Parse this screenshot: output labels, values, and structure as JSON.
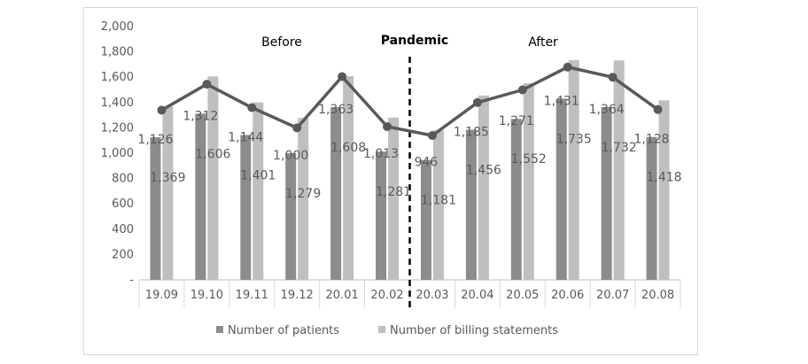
{
  "chart_data": {
    "type": "bar",
    "categories": [
      "19.09",
      "19.10",
      "19.11",
      "19.12",
      "20.01",
      "20.02",
      "20.03",
      "20.04",
      "20.05",
      "20.06",
      "20.07",
      "20.08"
    ],
    "series": [
      {
        "name": "Number of patients",
        "type": "bar",
        "color": "#8c8c8c",
        "values": [
          1126,
          1312,
          1144,
          1000,
          1363,
          1013,
          946,
          1185,
          1271,
          1431,
          1364,
          1128
        ],
        "labels": [
          "1,126",
          "1,312",
          "1,144",
          "1,000",
          "1,363",
          "1,013",
          "946",
          "1,185",
          "1,271",
          "1,431",
          "1,364",
          "1,128"
        ]
      },
      {
        "name": "Number of billing statements",
        "type": "bar",
        "color": "#bfbfbf",
        "values": [
          1369,
          1606,
          1401,
          1279,
          1608,
          1281,
          1181,
          1456,
          1552,
          1735,
          1732,
          1418
        ],
        "labels": [
          "1,369",
          "1,606",
          "1,401",
          "1,279",
          "1,608",
          "1,281",
          "1,181",
          "1,456",
          "1,552",
          "1,735",
          "1,732",
          "1,418"
        ]
      }
    ],
    "line": {
      "color": "#595959",
      "values": [
        1340,
        1545,
        1360,
        1200,
        1605,
        1210,
        1140,
        1400,
        1500,
        1680,
        1600,
        1345
      ]
    },
    "y_ticks": [
      "-",
      "200",
      "400",
      "600",
      "800",
      "1,000",
      "1,200",
      "1,400",
      "1,600",
      "1,800",
      "2,000"
    ],
    "ylim": [
      0,
      2000
    ],
    "annotations": {
      "before": "Before",
      "pandemic": "Pandemic",
      "after": "After"
    },
    "divider_between": [
      "20.02",
      "20.03"
    ],
    "legend_position": "bottom",
    "grid": false
  }
}
